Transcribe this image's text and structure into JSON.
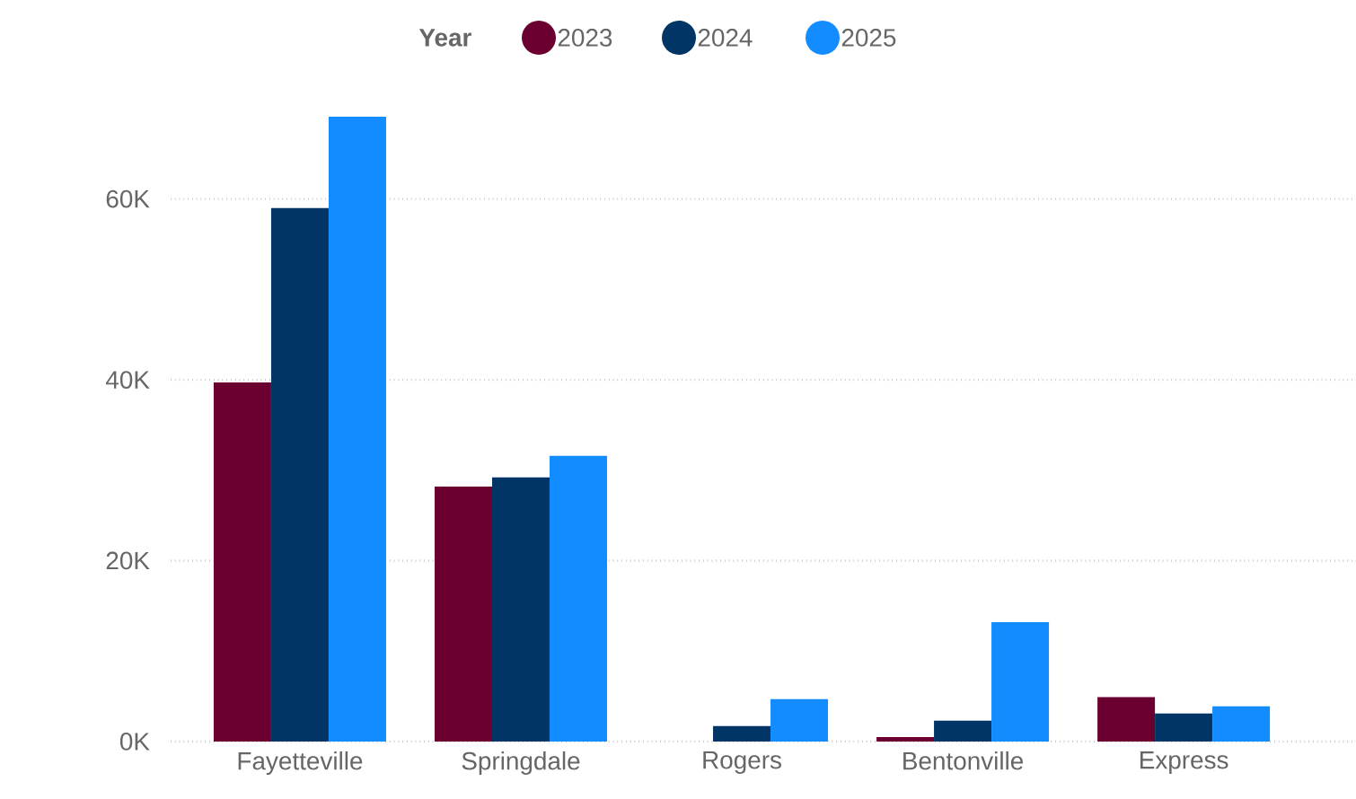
{
  "chart_data": {
    "type": "bar",
    "legend_title": "Year",
    "categories": [
      "Fayetteville",
      "Springdale",
      "Rogers",
      "Bentonville",
      "Express"
    ],
    "series": [
      {
        "name": "2023",
        "color": "#6b0030",
        "values": [
          39700,
          28200,
          null,
          500,
          4900
        ]
      },
      {
        "name": "2024",
        "color": "#003566",
        "values": [
          59000,
          29200,
          1700,
          2300,
          3100
        ]
      },
      {
        "name": "2025",
        "color": "#128cff",
        "values": [
          69100,
          31600,
          4700,
          13200,
          3900
        ]
      }
    ],
    "ylim": [
      0,
      69100
    ],
    "yticks": [
      {
        "value": 0,
        "label": "0K"
      },
      {
        "value": 20000,
        "label": "20K"
      },
      {
        "value": 40000,
        "label": "40K"
      },
      {
        "value": 60000,
        "label": "60K"
      }
    ],
    "grid": "y",
    "legend": "top"
  }
}
